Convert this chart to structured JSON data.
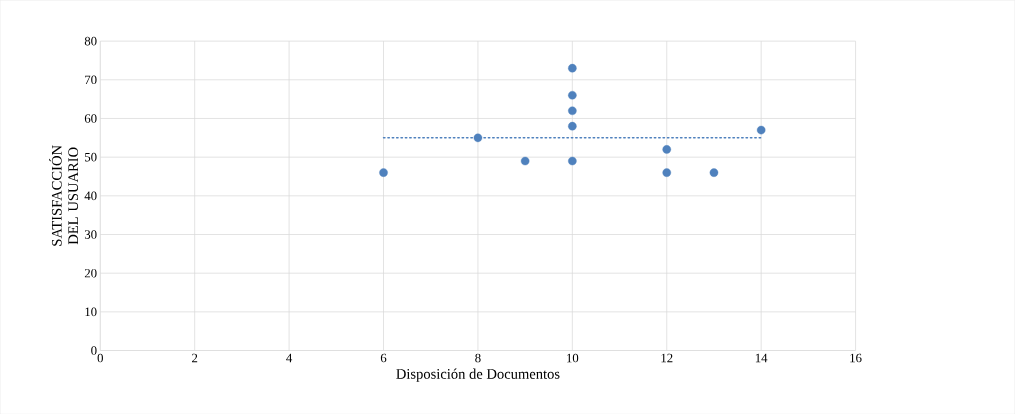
{
  "chart_data": {
    "type": "scatter",
    "xlabel": "Disposición de Documentos",
    "ylabel": "SATISFACCIÓN DEL USUARIO",
    "xlim": [
      0,
      16
    ],
    "ylim": [
      0,
      80
    ],
    "xticks": [
      0,
      2,
      4,
      6,
      8,
      10,
      12,
      14,
      16
    ],
    "yticks": [
      0,
      10,
      20,
      30,
      40,
      50,
      60,
      70,
      80
    ],
    "grid": true,
    "series": [
      {
        "color": "#4f81bd",
        "marker": "circle",
        "x": [
          6,
          8,
          9,
          10,
          10,
          10,
          10,
          10,
          12,
          12,
          13,
          14
        ],
        "values": [
          46,
          55,
          49,
          49,
          58,
          62,
          66,
          73,
          52,
          46,
          46,
          57
        ]
      },
      {
        "type": "line",
        "color": "#4f81bd",
        "line_style": "dotted",
        "marker": "none",
        "x": [
          6,
          14
        ],
        "values": [
          55,
          55
        ]
      }
    ]
  }
}
